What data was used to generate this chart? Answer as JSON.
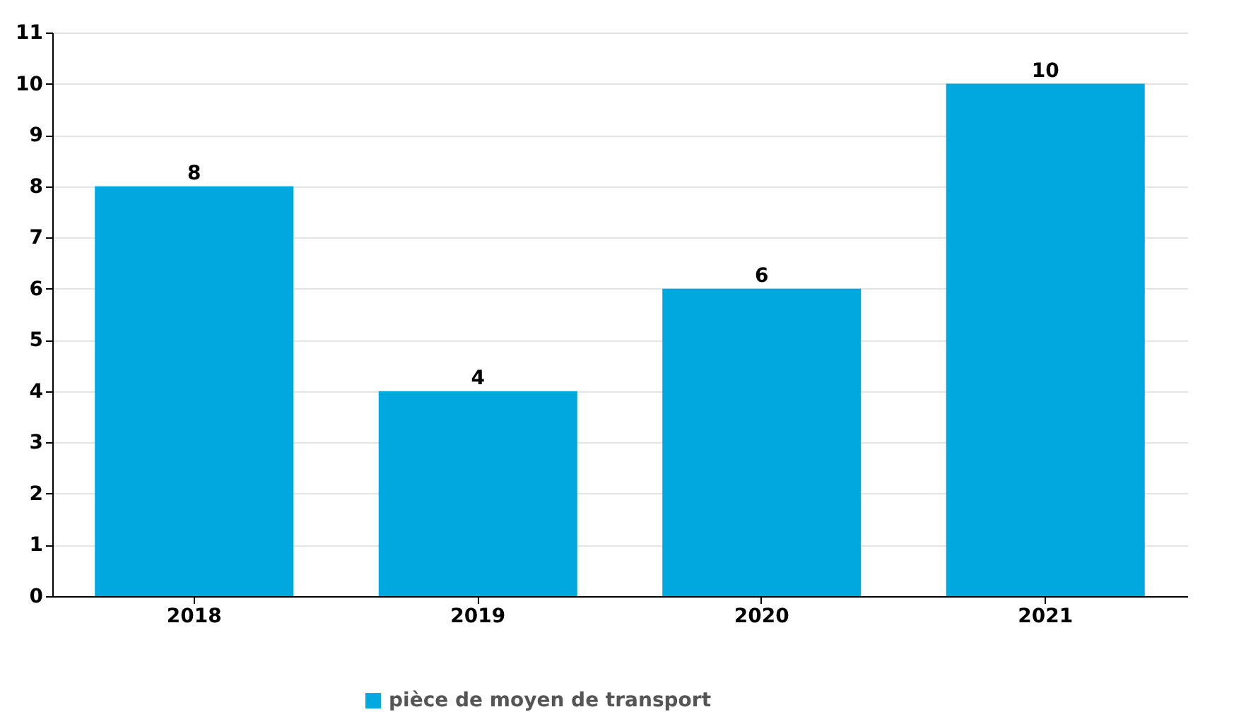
{
  "chart_data": {
    "type": "bar",
    "categories": [
      "2018",
      "2019",
      "2020",
      "2021"
    ],
    "series": [
      {
        "name": "pièce de moyen de transport",
        "color": "#00a8e0",
        "values": [
          8,
          4,
          6,
          10
        ]
      }
    ],
    "ylim": [
      0,
      11
    ],
    "yticks": [
      0,
      1,
      2,
      3,
      4,
      5,
      6,
      7,
      8,
      9,
      10,
      11
    ],
    "grid": "y",
    "legend": "bottom",
    "data_labels": true
  }
}
